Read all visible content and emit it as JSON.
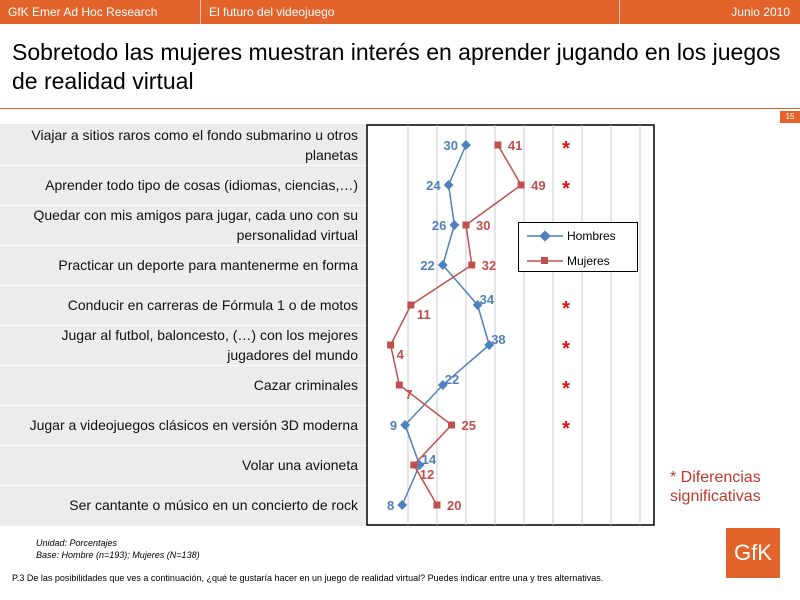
{
  "header": {
    "company": "GfK Emer Ad Hoc Research",
    "study": "El futuro del videojuego",
    "date": "Junio 2010"
  },
  "title": "Sobretodo las mujeres muestran interés en aprender jugando en los juegos de realidad virtual",
  "page_number": "15",
  "chart_data": {
    "type": "line",
    "orientation": "horizontal-categories",
    "categories": [
      "Viajar a sitios raros como el fondo submarino u otros planetas",
      "Aprender todo tipo de cosas (idiomas, ciencias,…)",
      "Quedar con mis amigos para jugar, cada uno con su personalidad virtual",
      "Practicar un deporte para mantenerme en forma",
      "Conducir en carreras de Fórmula 1 o de motos",
      "Jugar al futbol, baloncesto, (…) con los mejores jugadores del mundo",
      "Cazar criminales",
      "Jugar a videojuegos clásicos en versión 3D moderna",
      "Volar una avioneta",
      "Ser cantante o músico en un concierto de rock"
    ],
    "series": [
      {
        "name": "Hombres",
        "color": "#4F81BD",
        "marker": "diamond",
        "values": [
          30,
          24,
          26,
          22,
          34,
          38,
          22,
          9,
          14,
          8
        ]
      },
      {
        "name": "Mujeres",
        "color": "#C0504D",
        "marker": "square",
        "values": [
          41,
          49,
          30,
          32,
          11,
          4,
          7,
          25,
          12,
          20
        ]
      }
    ],
    "significant": [
      true,
      true,
      false,
      false,
      true,
      true,
      true,
      true,
      false,
      false
    ],
    "significant_marker": "*",
    "xlim": [
      0,
      100
    ],
    "grid": true,
    "legend_position": "right"
  },
  "note": "* Diferencias significativas",
  "footnotes": {
    "unit": "Unidad: Porcentajes",
    "base": "Base: Hombre (n=193); Mujeres (N=138)"
  },
  "question": "P.3 De las posibilidades que ves a continuación, ¿qué te gustaría hacer en un juego de realidad virtual? Puedes indicar entre una y tres alternativas.",
  "logo": "GfK"
}
